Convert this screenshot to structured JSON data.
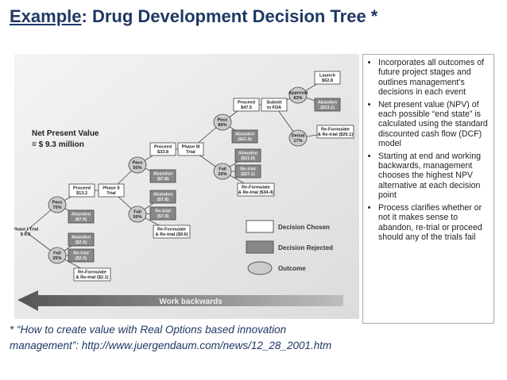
{
  "header": {
    "emphasis": "Example",
    "rest": ": Drug Development Decision Tree *"
  },
  "diagram": {
    "npv": [
      "Net Present Value",
      "= $ 9.3 million"
    ],
    "nodes": [
      {
        "label": [
          "Phase I Trial",
          "$ 9.3"
        ]
      },
      {
        "label": [
          "Pass",
          "75%"
        ]
      },
      {
        "label": [
          "Fail",
          "25%"
        ]
      },
      {
        "label": [
          "Proceed",
          "$13.2"
        ]
      },
      {
        "label": [
          "Phase II",
          "Trial"
        ]
      },
      {
        "label": [
          "Abandon",
          "($7.6)"
        ]
      },
      {
        "label": [
          "Abandon",
          "($2.6)"
        ]
      },
      {
        "label": [
          "Re-trial",
          "($2.5)"
        ]
      },
      {
        "label": [
          "Re-Formulate",
          "& Re-trial ($2.1)"
        ]
      },
      {
        "label": [
          "Pass",
          "50%"
        ]
      },
      {
        "label": [
          "Fail",
          "50%"
        ]
      },
      {
        "label": [
          "Proceed",
          "$33.8"
        ]
      },
      {
        "label": [
          "Phase III",
          "Trial"
        ]
      },
      {
        "label": [
          "Abandon",
          "($7.8)"
        ]
      },
      {
        "label": [
          "Abandon",
          "($7.8)"
        ]
      },
      {
        "label": [
          "Re-trial",
          "($7.9)"
        ]
      },
      {
        "label": [
          "Re-Formulate",
          "& Re-trial ($9.6)"
        ]
      },
      {
        "label": [
          "Pass",
          "80%"
        ]
      },
      {
        "label": [
          "Fail",
          "20%"
        ]
      },
      {
        "label": [
          "Proceed",
          "$47.5"
        ]
      },
      {
        "label": [
          "Submit",
          "to FDA"
        ]
      },
      {
        "label": [
          "Abandon",
          "($21.0)"
        ]
      },
      {
        "label": [
          "Abandon",
          "($21.0)"
        ]
      },
      {
        "label": [
          "Re-trial",
          "($27.1)"
        ]
      },
      {
        "label": [
          "Re-Formulate",
          "& Re-trial ($34.4)"
        ]
      },
      {
        "label": [
          "Approval",
          "83%"
        ]
      },
      {
        "label": [
          "Denial",
          "17%"
        ]
      },
      {
        "label": [
          "Launch",
          "$62.8"
        ]
      },
      {
        "label": [
          "Abandon",
          "($23.1)"
        ]
      },
      {
        "label": [
          "Re-Formulate",
          "& Re-trial ($29.1)"
        ]
      }
    ],
    "legend": [
      "Decision Chosen",
      "Decision Rejected",
      "Outcome"
    ],
    "arrow": "Work backwards"
  },
  "bullets": [
    "Incorporates all outcomes of future project stages and outlines management’s decisions in each event",
    "Net present value (NPV) of each possible “end state” is calculated using the standard discounted cash flow (DCF) model",
    "Starting at end and working backwards, management chooses the highest NPV alternative at each decision point",
    "Process clarifies whether or not it makes sense to abandon, re-trial or proceed should any of the trials fail"
  ],
  "footnote": [
    "* “How to create value with Real Options based innovation",
    "management”:  http://www.juergendaum.com/news/12_28_2001.htm"
  ]
}
